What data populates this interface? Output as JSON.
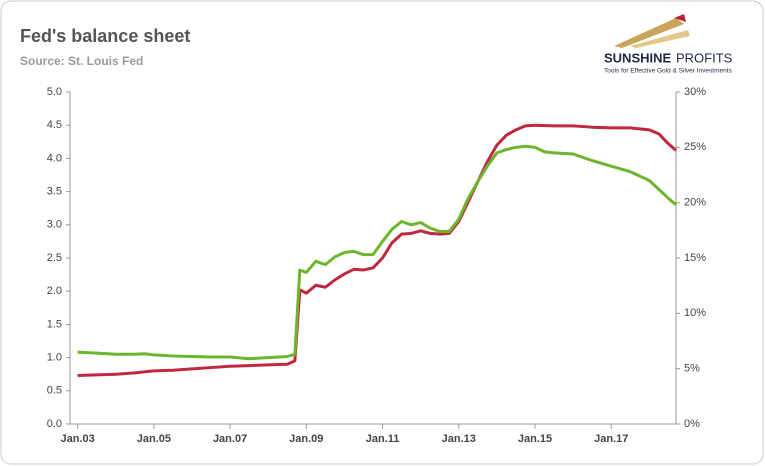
{
  "chart_data": {
    "type": "line",
    "title": "Fed's balance sheet",
    "subtitle": "Source: St. Louis Fed",
    "logo_name": "SUNSHINE",
    "logo_name_2": "PROFITS",
    "logo_tagline": "Tools for Effective Gold & Silver Investments",
    "xlim": [
      2002.8,
      2018.7
    ],
    "xticks": [
      {
        "value": 2003,
        "label": "Jan.03"
      },
      {
        "value": 2005,
        "label": "Jan.05"
      },
      {
        "value": 2007,
        "label": "Jan.07"
      },
      {
        "value": 2009,
        "label": "Jan.09"
      },
      {
        "value": 2011,
        "label": "Jan.11"
      },
      {
        "value": 2013,
        "label": "Jan.13"
      },
      {
        "value": 2015,
        "label": "Jan.15"
      },
      {
        "value": 2017,
        "label": "Jan.17"
      }
    ],
    "ylim": [
      0,
      5
    ],
    "yticks": [
      {
        "value": 0,
        "label": "0.0"
      },
      0.5,
      {
        "value": 1,
        "label": "1.0"
      },
      1.5,
      {
        "value": 2,
        "label": "2.0"
      },
      2.5,
      {
        "value": 3,
        "label": "3.0"
      },
      3.5,
      {
        "value": 4,
        "label": "4.0"
      },
      4.5,
      {
        "value": 5,
        "label": "5.0"
      }
    ],
    "y2lim": [
      0,
      30
    ],
    "y2ticks": [
      {
        "value": 0,
        "label": "0%"
      },
      {
        "value": 5,
        "label": "5%"
      },
      {
        "value": 10,
        "label": "10%"
      },
      {
        "value": 15,
        "label": "15%"
      },
      {
        "value": 20,
        "label": "20%"
      },
      {
        "value": 25,
        "label": "25%"
      },
      {
        "value": 30,
        "label": "30%"
      }
    ],
    "series": [
      {
        "color": "#c0283e",
        "x": [
          2003,
          2003.5,
          2004,
          2004.5,
          2005,
          2005.5,
          2006,
          2006.5,
          2007,
          2007.5,
          2008,
          2008.5,
          2008.7,
          2008.83,
          2009,
          2009.25,
          2009.5,
          2009.75,
          2010,
          2010.25,
          2010.5,
          2010.75,
          2011,
          2011.25,
          2011.5,
          2011.75,
          2012,
          2012.25,
          2012.5,
          2012.75,
          2013,
          2013.25,
          2013.5,
          2013.75,
          2014,
          2014.25,
          2014.5,
          2014.75,
          2015,
          2015.5,
          2016,
          2016.5,
          2017,
          2017.5,
          2018,
          2018.25,
          2018.5,
          2018.7
        ],
        "values": [
          0.73,
          0.74,
          0.75,
          0.77,
          0.8,
          0.81,
          0.83,
          0.85,
          0.87,
          0.88,
          0.89,
          0.9,
          0.95,
          2.02,
          1.97,
          2.09,
          2.06,
          2.17,
          2.26,
          2.33,
          2.32,
          2.35,
          2.5,
          2.73,
          2.86,
          2.87,
          2.91,
          2.87,
          2.86,
          2.87,
          3.05,
          3.35,
          3.65,
          3.95,
          4.2,
          4.35,
          4.43,
          4.49,
          4.5,
          4.49,
          4.49,
          4.47,
          4.46,
          4.46,
          4.43,
          4.37,
          4.22,
          4.12
        ]
      },
      {
        "color": "#6cb52d",
        "axis": "y2",
        "x": [
          2003,
          2003.5,
          2004,
          2004.5,
          2004.75,
          2005,
          2005.5,
          2006,
          2006.5,
          2007,
          2007.5,
          2008,
          2008.5,
          2008.7,
          2008.83,
          2009,
          2009.25,
          2009.5,
          2009.75,
          2010,
          2010.25,
          2010.5,
          2010.75,
          2011,
          2011.25,
          2011.5,
          2011.75,
          2012,
          2012.25,
          2012.5,
          2012.75,
          2013,
          2013.25,
          2013.5,
          2013.75,
          2014,
          2014.25,
          2014.5,
          2014.75,
          2015,
          2015.25,
          2015.5,
          2016,
          2016.5,
          2017,
          2017.5,
          2018,
          2018.25,
          2018.5,
          2018.7
        ],
        "values": [
          6.5,
          6.4,
          6.3,
          6.3,
          6.35,
          6.25,
          6.15,
          6.1,
          6.05,
          6.05,
          5.9,
          6.0,
          6.1,
          6.3,
          13.9,
          13.7,
          14.7,
          14.4,
          15.1,
          15.5,
          15.6,
          15.3,
          15.3,
          16.5,
          17.6,
          18.3,
          18.0,
          18.2,
          17.7,
          17.4,
          17.4,
          18.5,
          20.4,
          21.9,
          23.3,
          24.5,
          24.8,
          25.0,
          25.1,
          25.0,
          24.6,
          24.5,
          24.4,
          23.8,
          23.3,
          22.8,
          22.0,
          21.2,
          20.4,
          19.8
        ]
      }
    ]
  }
}
